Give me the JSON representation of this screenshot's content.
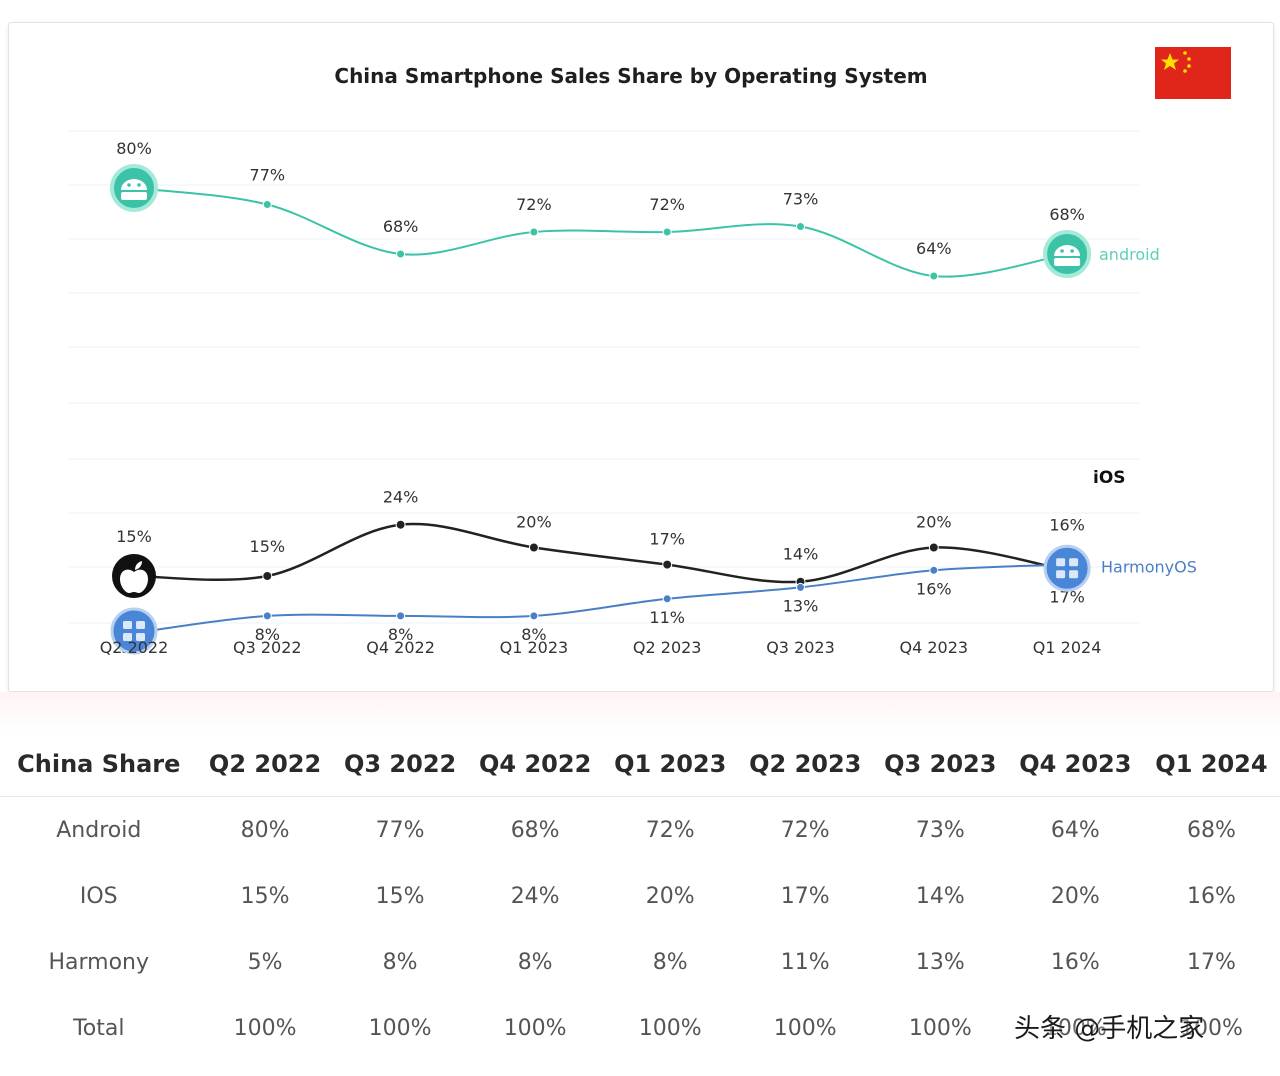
{
  "chart_data": {
    "type": "line",
    "title": "China Smartphone Sales Share by Operating System",
    "categories": [
      "Q2 2022",
      "Q3 2022",
      "Q4 2022",
      "Q1 2023",
      "Q2 2023",
      "Q3 2023",
      "Q4 2023",
      "Q1 2024"
    ],
    "series": [
      {
        "name": "android",
        "values": [
          80,
          77,
          68,
          72,
          72,
          73,
          64,
          68
        ],
        "labels": [
          "80%",
          "77%",
          "68%",
          "72%",
          "72%",
          "73%",
          "64%",
          "68%"
        ],
        "color": "#3cc3a7"
      },
      {
        "name": "iOS",
        "values": [
          15,
          15,
          24,
          20,
          17,
          14,
          20,
          16
        ],
        "labels": [
          "15%",
          "15%",
          "24%",
          "20%",
          "17%",
          "14%",
          "20%",
          "16%"
        ],
        "color": "#222222"
      },
      {
        "name": "HarmonyOS",
        "values": [
          5,
          8,
          8,
          8,
          11,
          13,
          16,
          17
        ],
        "labels": [
          "5%",
          "8%",
          "8%",
          "8%",
          "11%",
          "13%",
          "16%",
          "17%"
        ],
        "color": "#4a7fc8"
      }
    ],
    "legend_position": "right-end-of-lines",
    "grid": true,
    "icons": [
      "android-icon",
      "apple-icon",
      "harmonyos-icon",
      "china-flag-icon"
    ]
  },
  "table": {
    "headers": [
      "China Share",
      "Q2 2022",
      "Q3 2022",
      "Q4 2022",
      "Q1 2023",
      "Q2 2023",
      "Q3 2023",
      "Q4 2023",
      "Q1 2024"
    ],
    "rows": [
      [
        "Android",
        "80%",
        "77%",
        "68%",
        "72%",
        "72%",
        "73%",
        "64%",
        "68%"
      ],
      [
        "IOS",
        "15%",
        "15%",
        "24%",
        "20%",
        "17%",
        "14%",
        "20%",
        "16%"
      ],
      [
        "Harmony",
        "5%",
        "8%",
        "8%",
        "8%",
        "11%",
        "13%",
        "16%",
        "17%"
      ],
      [
        "Total",
        "100%",
        "100%",
        "100%",
        "100%",
        "100%",
        "100%",
        "100%",
        "100%"
      ]
    ]
  },
  "watermark": "头条 @手机之家"
}
